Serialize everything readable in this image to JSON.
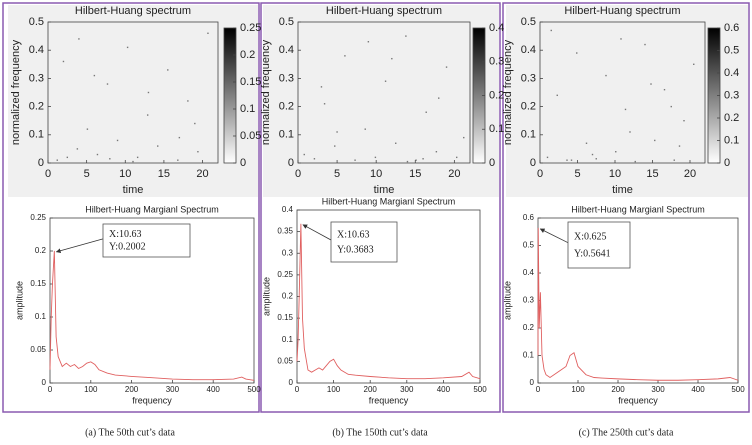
{
  "chart_data": [
    {
      "type": "scatter",
      "title": "Hilbert-Huang spectrum",
      "xlabel": "time",
      "ylabel": "normalized frequency",
      "xlim": [
        0,
        22
      ],
      "ylim": [
        0,
        0.5
      ],
      "xticks": [
        0,
        5,
        10,
        15,
        20
      ],
      "yticks": [
        0,
        0.1,
        0.2,
        0.3,
        0.4,
        0.5
      ],
      "clim": [
        0,
        0.25
      ],
      "cticks": [
        0,
        0.05,
        0.1,
        0.15,
        0.2,
        0.25
      ],
      "color": "#777777",
      "x": [
        1.2,
        2.5,
        3.8,
        5.1,
        6.4,
        7.7,
        9,
        10.3,
        11.6,
        12.9,
        14.2,
        15.5,
        16.8,
        18.1,
        19.4,
        20.7,
        2,
        8,
        13,
        17,
        4,
        11,
        19,
        6
      ],
      "values": [
        0.01,
        0.02,
        0.05,
        0.12,
        0.03,
        0.28,
        0.08,
        0.41,
        0.02,
        0.17,
        0.06,
        0.33,
        0.01,
        0.22,
        0.04,
        0.46,
        0.36,
        0.015,
        0.25,
        0.09,
        0.44,
        0.005,
        0.14,
        0.31
      ]
    },
    {
      "type": "line",
      "title": "Hilbert-Huang Margianl Spectrum",
      "xlabel": "frequency",
      "ylabel": "amplitude",
      "xlim": [
        0,
        500
      ],
      "ylim": [
        0,
        0.25
      ],
      "xticks": [
        0,
        100,
        200,
        300,
        400,
        500
      ],
      "yticks": [
        0,
        0.05,
        0.1,
        0.15,
        0.2,
        0.25
      ],
      "color": "#e06060",
      "x": [
        0,
        3,
        6,
        10.63,
        15,
        20,
        30,
        40,
        50,
        60,
        70,
        80,
        90,
        100,
        110,
        120,
        140,
        160,
        200,
        250,
        300,
        350,
        400,
        450,
        470,
        480,
        500
      ],
      "values": [
        0.02,
        0.1,
        0.15,
        0.2002,
        0.07,
        0.04,
        0.025,
        0.03,
        0.025,
        0.028,
        0.022,
        0.025,
        0.03,
        0.032,
        0.028,
        0.02,
        0.015,
        0.012,
        0.01,
        0.008,
        0.006,
        0.005,
        0.005,
        0.006,
        0.009,
        0.006,
        0.004
      ],
      "annotation": {
        "x": 10.63,
        "y": 0.2002,
        "label_x": "X:10.63",
        "label_y": "Y:0.2002"
      }
    },
    {
      "type": "scatter",
      "title": "Hilbert-Huang spectrum",
      "xlabel": "time",
      "ylabel": "normalized frequency",
      "xlim": [
        0,
        22
      ],
      "ylim": [
        0,
        0.5
      ],
      "xticks": [
        0,
        5,
        10,
        15,
        20
      ],
      "yticks": [
        0,
        0.1,
        0.2,
        0.3,
        0.4,
        0.5
      ],
      "clim": [
        0,
        0.4
      ],
      "cticks": [
        0,
        0.1,
        0.2,
        0.3,
        0.4
      ],
      "color": "#777777",
      "x": [
        0.8,
        2.1,
        3.4,
        4.7,
        6,
        7.3,
        8.6,
        9.9,
        11.2,
        12.5,
        13.8,
        15.1,
        16.4,
        17.7,
        19,
        20.3,
        21.2,
        3,
        9,
        14,
        18,
        5,
        12,
        16
      ],
      "values": [
        0.03,
        0.015,
        0.21,
        0.06,
        0.38,
        0.01,
        0.12,
        0.02,
        0.29,
        0.07,
        0.45,
        0.01,
        0.18,
        0.04,
        0.34,
        0.02,
        0.09,
        0.27,
        0.43,
        0.005,
        0.23,
        0.11,
        0.37,
        0.015
      ]
    },
    {
      "type": "line",
      "title": "Hilbert-Huang Margianl Spectrum",
      "xlabel": "frequency",
      "ylabel": "amplitude",
      "xlim": [
        0,
        500
      ],
      "ylim": [
        0,
        0.4
      ],
      "xticks": [
        0,
        100,
        200,
        300,
        400,
        500
      ],
      "yticks": [
        0,
        0.05,
        0.1,
        0.15,
        0.2,
        0.25,
        0.3,
        0.35,
        0.4
      ],
      "color": "#e06060",
      "x": [
        0,
        3,
        6,
        10.63,
        15,
        20,
        30,
        40,
        50,
        60,
        70,
        80,
        90,
        100,
        110,
        120,
        140,
        160,
        200,
        250,
        300,
        350,
        400,
        450,
        470,
        480,
        500
      ],
      "values": [
        0.05,
        0.1,
        0.2,
        0.3683,
        0.15,
        0.08,
        0.03,
        0.025,
        0.03,
        0.035,
        0.03,
        0.04,
        0.05,
        0.055,
        0.04,
        0.03,
        0.02,
        0.018,
        0.015,
        0.012,
        0.01,
        0.01,
        0.012,
        0.015,
        0.025,
        0.015,
        0.01
      ],
      "annotation": {
        "x": 10.63,
        "y": 0.3683,
        "label_x": "X:10.63",
        "label_y": "Y:0.3683"
      }
    },
    {
      "type": "scatter",
      "title": "Hilbert-Huang spectrum",
      "xlabel": "time",
      "ylabel": "normalized frequency",
      "xlim": [
        0,
        22
      ],
      "ylim": [
        0,
        0.5
      ],
      "xticks": [
        0,
        5,
        10,
        15,
        20
      ],
      "yticks": [
        0,
        0.1,
        0.2,
        0.3,
        0.4,
        0.5
      ],
      "clim": [
        0,
        0.6
      ],
      "cticks": [
        0,
        0.1,
        0.2,
        0.3,
        0.4,
        0.5,
        0.6
      ],
      "color": "#777777",
      "x": [
        1,
        2.3,
        3.6,
        4.9,
        6.2,
        7.5,
        8.8,
        10.1,
        11.4,
        12.7,
        14,
        15.3,
        16.6,
        17.9,
        19.2,
        20.5,
        1.5,
        7,
        12,
        17.5,
        4.2,
        10.8,
        18.6,
        14.8
      ],
      "values": [
        0.02,
        0.24,
        0.01,
        0.39,
        0.07,
        0.015,
        0.31,
        0.04,
        0.19,
        0.005,
        0.42,
        0.08,
        0.26,
        0.01,
        0.15,
        0.35,
        0.47,
        0.03,
        0.11,
        0.2,
        0.01,
        0.44,
        0.06,
        0.28
      ]
    },
    {
      "type": "line",
      "title": "Hilbert-Huang Margianl Spectrum",
      "xlabel": "frequency",
      "ylabel": "amplitude",
      "xlim": [
        0,
        500
      ],
      "ylim": [
        0,
        0.6
      ],
      "xticks": [
        0,
        100,
        200,
        300,
        400,
        500
      ],
      "yticks": [
        0,
        0.1,
        0.2,
        0.3,
        0.4,
        0.5,
        0.6
      ],
      "color": "#e06060",
      "x": [
        0,
        0.625,
        3,
        6,
        10,
        15,
        20,
        30,
        40,
        50,
        60,
        70,
        80,
        90,
        100,
        120,
        140,
        160,
        200,
        250,
        300,
        350,
        400,
        450,
        480,
        500
      ],
      "values": [
        0.1,
        0.5641,
        0.2,
        0.33,
        0.1,
        0.05,
        0.03,
        0.02,
        0.03,
        0.04,
        0.05,
        0.06,
        0.1,
        0.11,
        0.06,
        0.03,
        0.02,
        0.018,
        0.015,
        0.012,
        0.01,
        0.01,
        0.012,
        0.015,
        0.02,
        0.01
      ],
      "annotation": {
        "x": 0.625,
        "y": 0.5641,
        "label_x": "X:0.625",
        "label_y": "Y:0.5641"
      }
    }
  ],
  "captions": [
    "(a) The 50th cut’s data",
    "(b) The 150th cut’s data",
    "(c) The 250th cut’s data"
  ]
}
